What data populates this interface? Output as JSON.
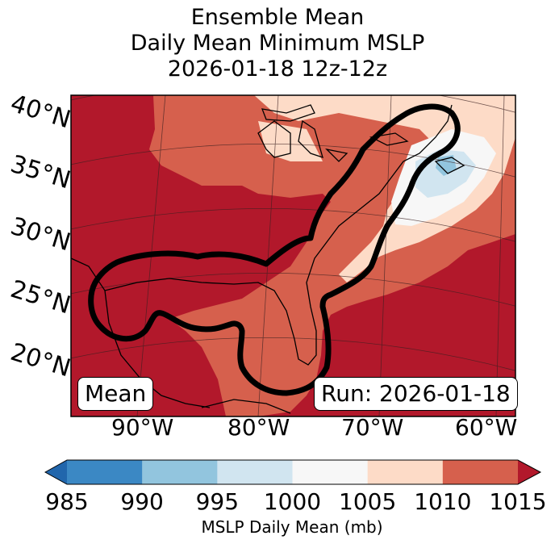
{
  "title": {
    "line1": "Ensemble Mean",
    "line2": "Daily Mean Minimum MSLP",
    "line3": "2026-01-18 12z-12z"
  },
  "map": {
    "lat_labels": [
      "40°N",
      "35°N",
      "30°N",
      "25°N",
      "20°N"
    ],
    "lon_labels": [
      "90°W",
      "80°W",
      "70°W",
      "60°W"
    ],
    "badge_left": "Mean",
    "badge_right": "Run: 2026-01-18"
  },
  "colorbar": {
    "label": "MSLP Daily Mean (mb)",
    "ticks": [
      "985",
      "990",
      "995",
      "1000",
      "1005",
      "1010",
      "1015"
    ],
    "colors": [
      "#3b88c4",
      "#92c5de",
      "#d1e5f0",
      "#f7f7f7",
      "#fddbc7",
      "#d6604d",
      "#b2182b"
    ],
    "under_color": "#2166ac",
    "over_color": "#b2182b"
  }
}
